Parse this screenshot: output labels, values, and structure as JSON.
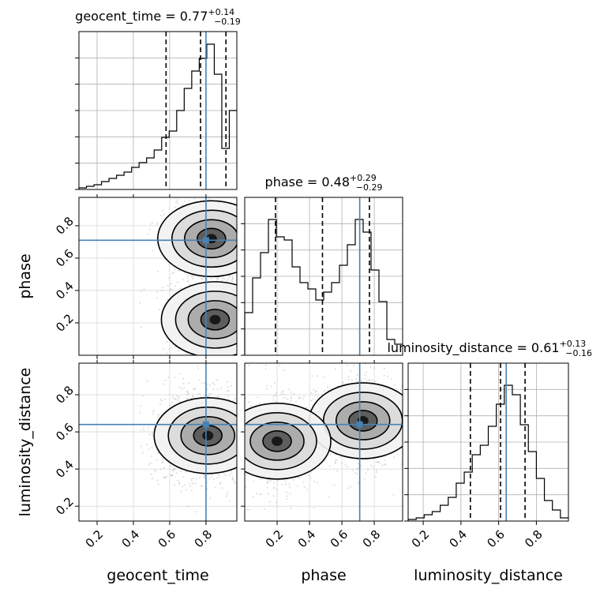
{
  "chart_data": {
    "type": "corner",
    "parameters": [
      "geocent_time",
      "phase",
      "luminosity_distance"
    ],
    "xlabel": [
      "geocent_time",
      "phase",
      "luminosity_distance"
    ],
    "ylabel": [
      "",
      "phase",
      "luminosity_distance"
    ],
    "ranges": [
      [
        0.1,
        0.97
      ],
      [
        0.0,
        0.975
      ],
      [
        0.12,
        0.97
      ]
    ],
    "ticks": [
      [
        0.2,
        0.4,
        0.6,
        0.8
      ],
      [
        0.2,
        0.4,
        0.6,
        0.8
      ],
      [
        0.2,
        0.4,
        0.6,
        0.8
      ]
    ],
    "tick_labels": [
      [
        "0.2",
        "0.4",
        "0.6",
        "0.8"
      ],
      [
        "0.2",
        "0.4",
        "0.6",
        "0.8"
      ],
      [
        "0.2",
        "0.4",
        "0.6",
        "0.8"
      ]
    ],
    "truths": [
      0.8,
      0.71,
      0.64
    ],
    "truth_color": "#4682b4",
    "titles": [
      {
        "name": "geocent_time",
        "median": "0.77",
        "plus": "+0.14",
        "minus": "−0.19"
      },
      {
        "name": "phase",
        "median": "0.48",
        "plus": "+0.29",
        "minus": "−0.29"
      },
      {
        "name": "luminosity_distance",
        "median": "0.61",
        "plus": "+0.13",
        "minus": "−0.16"
      }
    ],
    "quantiles": [
      [
        0.58,
        0.77,
        0.91
      ],
      [
        0.19,
        0.48,
        0.77
      ],
      [
        0.45,
        0.61,
        0.74
      ]
    ],
    "histograms": [
      {
        "bins": [
          0.1,
          0.97
        ],
        "values": [
          0.01,
          0.02,
          0.03,
          0.05,
          0.07,
          0.09,
          0.11,
          0.14,
          0.17,
          0.2,
          0.25,
          0.33,
          0.37,
          0.5,
          0.64,
          0.75,
          0.83,
          0.92,
          0.73,
          0.26,
          0.5
        ]
      },
      {
        "bins": [
          0.0,
          0.975
        ],
        "values": [
          0.27,
          0.49,
          0.65,
          0.86,
          0.75,
          0.73,
          0.56,
          0.46,
          0.42,
          0.35,
          0.4,
          0.46,
          0.57,
          0.7,
          0.86,
          0.78,
          0.54,
          0.34,
          0.1,
          0.07
        ]
      },
      {
        "bins": [
          0.12,
          0.97
        ],
        "values": [
          0.01,
          0.02,
          0.04,
          0.06,
          0.1,
          0.15,
          0.24,
          0.31,
          0.42,
          0.48,
          0.6,
          0.74,
          0.86,
          0.8,
          0.61,
          0.44,
          0.27,
          0.13,
          0.07,
          0.02
        ]
      }
    ],
    "density_modes": [
      {
        "x_param": "geocent_time",
        "y_param": "phase",
        "centers": [
          [
            0.83,
            0.72
          ],
          [
            0.85,
            0.22
          ]
        ]
      },
      {
        "x_param": "geocent_time",
        "y_param": "luminosity_distance",
        "centers": [
          [
            0.81,
            0.58
          ]
        ]
      },
      {
        "x_param": "phase",
        "y_param": "luminosity_distance",
        "centers": [
          [
            0.73,
            0.66
          ],
          [
            0.2,
            0.55
          ]
        ]
      }
    ]
  }
}
